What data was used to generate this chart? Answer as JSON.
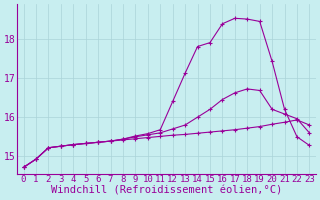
{
  "background_color": "#c8eef0",
  "grid_color": "#aad4d8",
  "line_color": "#990099",
  "xlabel": "Windchill (Refroidissement éolien,°C)",
  "xlabel_fontsize": 7.5,
  "tick_fontsize": 6.5,
  "ytick_fontsize": 7,
  "yticks": [
    15,
    16,
    17,
    18
  ],
  "xticks": [
    0,
    1,
    2,
    3,
    4,
    5,
    6,
    7,
    8,
    9,
    10,
    11,
    12,
    13,
    14,
    15,
    16,
    17,
    18,
    19,
    20,
    21,
    22,
    23
  ],
  "series1_x": [
    0,
    1,
    2,
    3,
    4,
    5,
    6,
    7,
    8,
    9,
    10,
    11,
    12,
    13,
    14,
    15,
    16,
    17,
    18,
    19,
    20,
    21,
    22,
    23
  ],
  "series1_y": [
    14.72,
    14.93,
    15.22,
    15.26,
    15.3,
    15.33,
    15.36,
    15.39,
    15.42,
    15.45,
    15.48,
    15.51,
    15.54,
    15.56,
    15.59,
    15.62,
    15.65,
    15.68,
    15.72,
    15.76,
    15.82,
    15.87,
    15.93,
    15.8
  ],
  "series2_x": [
    0,
    1,
    2,
    3,
    4,
    5,
    6,
    7,
    8,
    9,
    10,
    11,
    12,
    13,
    14,
    15,
    16,
    17,
    18,
    19,
    20,
    21,
    22,
    23
  ],
  "series2_y": [
    14.72,
    14.93,
    15.22,
    15.26,
    15.3,
    15.33,
    15.36,
    15.39,
    15.44,
    15.5,
    15.55,
    15.6,
    15.7,
    15.8,
    16.0,
    16.2,
    16.45,
    16.62,
    16.72,
    16.68,
    16.2,
    16.08,
    15.96,
    15.6
  ],
  "series3_x": [
    0,
    1,
    2,
    3,
    4,
    5,
    6,
    7,
    8,
    9,
    10,
    11,
    12,
    13,
    14,
    15,
    16,
    17,
    18,
    19,
    20,
    21,
    22,
    23
  ],
  "series3_y": [
    14.72,
    14.93,
    15.22,
    15.26,
    15.3,
    15.33,
    15.36,
    15.39,
    15.44,
    15.52,
    15.58,
    15.68,
    16.4,
    17.12,
    17.8,
    17.9,
    18.38,
    18.52,
    18.5,
    18.44,
    17.42,
    16.2,
    15.5,
    15.28
  ]
}
